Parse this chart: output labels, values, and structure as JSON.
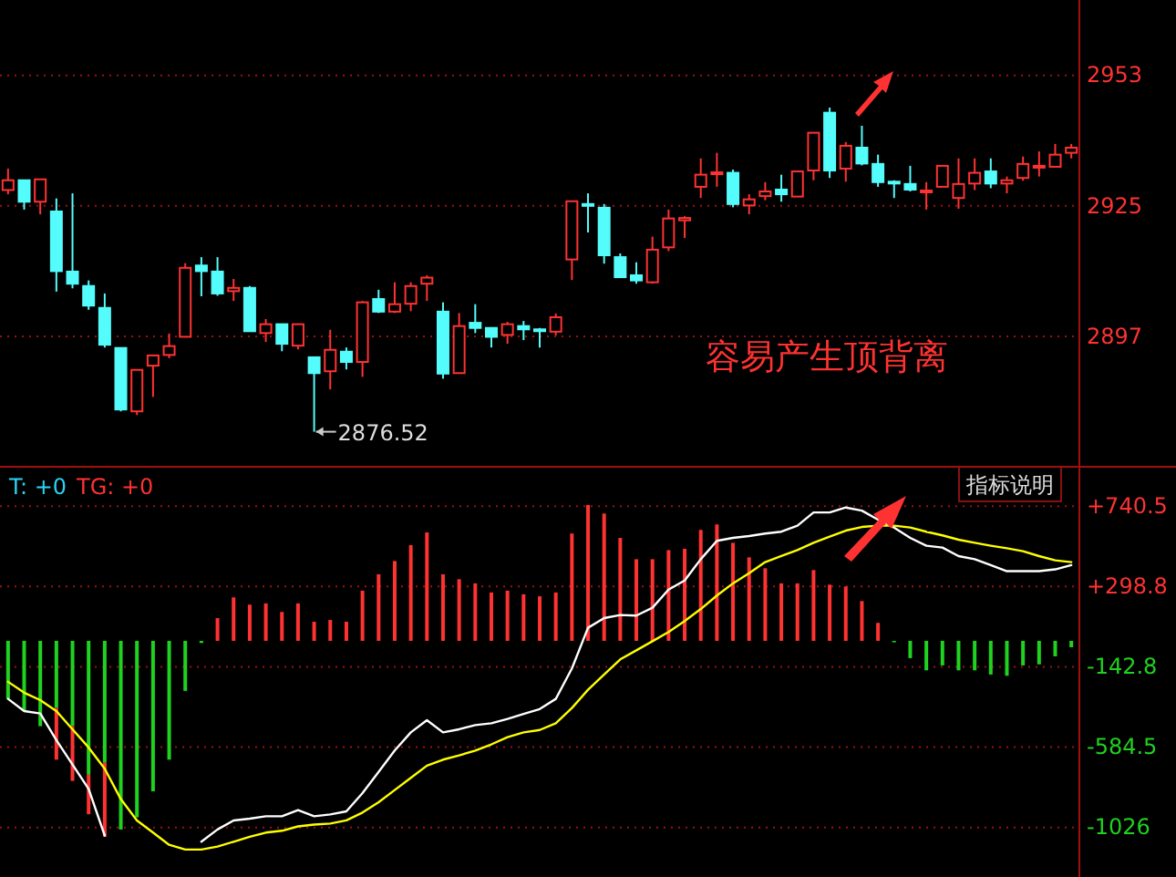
{
  "chart_data": [
    {
      "type": "candlestick",
      "categories": [
        null,
        null,
        null,
        null,
        null,
        null,
        null,
        null,
        null,
        null,
        null,
        null,
        null,
        null,
        null,
        null,
        null,
        null,
        null,
        null,
        null,
        null,
        null,
        null,
        null,
        null,
        null,
        null,
        null,
        null,
        null,
        null,
        null,
        null,
        null,
        null,
        null,
        null,
        null,
        null,
        null,
        null,
        null,
        null,
        null,
        null,
        null,
        null,
        null,
        null,
        null,
        null,
        null,
        null,
        null,
        null,
        null,
        null,
        null,
        null,
        null,
        null,
        null,
        null,
        null,
        null,
        null
      ],
      "ohlc": [
        [
          2928.4,
          2933.0,
          2927.5,
          2930.5
        ],
        [
          2930.5,
          2930.5,
          2924.2,
          2925.9
        ],
        [
          2925.9,
          2930.7,
          2923.2,
          2930.7
        ],
        [
          2923.8,
          2926.6,
          2906.6,
          2911.0
        ],
        [
          2910.9,
          2927.7,
          2907.3,
          2908.3
        ],
        [
          2907.8,
          2909.0,
          2902.7,
          2903.6
        ],
        [
          2903.1,
          2906.2,
          2894.6,
          2895.2
        ],
        [
          2894.5,
          2894.5,
          2880.9,
          2881.3
        ],
        [
          2880.9,
          2889.8,
          2880.1,
          2889.8
        ],
        [
          2890.7,
          2892.9,
          2884.0,
          2892.9
        ],
        [
          2893.0,
          2897.6,
          2892.3,
          2894.9
        ],
        [
          2896.9,
          2912.7,
          2896.9,
          2911.7
        ],
        [
          2912.2,
          2914.0,
          2905.6,
          2911.0
        ],
        [
          2910.9,
          2914.0,
          2905.7,
          2906.2
        ],
        [
          2906.7,
          2909.3,
          2904.6,
          2907.4
        ],
        [
          2907.4,
          2907.8,
          2898.1,
          2898.1
        ],
        [
          2897.7,
          2900.7,
          2895.8,
          2899.6
        ],
        [
          2899.6,
          2899.6,
          2893.8,
          2895.4
        ],
        [
          2895.0,
          2899.6,
          2894.2,
          2899.6
        ],
        [
          2892.5,
          2892.5,
          2876.52,
          2889.1
        ],
        [
          2889.5,
          2898.4,
          2885.6,
          2894.1
        ],
        [
          2893.7,
          2894.6,
          2889.9,
          2891.5
        ],
        [
          2891.5,
          2904.6,
          2888.3,
          2904.3
        ],
        [
          2905.0,
          2907.0,
          2902.0,
          2902.3
        ],
        [
          2902.3,
          2908.6,
          2902.0,
          2903.9
        ],
        [
          2904.0,
          2908.6,
          2902.4,
          2907.8
        ],
        [
          2908.3,
          2910.1,
          2904.6,
          2909.6
        ],
        [
          2902.3,
          2904.3,
          2887.9,
          2889.0
        ],
        [
          2889.1,
          2902.0,
          2889.1,
          2899.2
        ],
        [
          2899.9,
          2903.9,
          2897.7,
          2898.8
        ],
        [
          2898.8,
          2898.8,
          2894.6,
          2896.9
        ],
        [
          2897.3,
          2900.1,
          2895.4,
          2899.6
        ],
        [
          2899.2,
          2900.3,
          2896.2,
          2898.5
        ],
        [
          2898.5,
          2898.8,
          2894.6,
          2898.3
        ],
        [
          2898.0,
          2901.9,
          2897.2,
          2901.1
        ],
        [
          2913.5,
          2926.0,
          2909.1,
          2926.0
        ],
        [
          2925.4,
          2927.7,
          2919.3,
          2925.1
        ],
        [
          2924.6,
          2925.4,
          2912.6,
          2914.4
        ],
        [
          2914.0,
          2914.8,
          2909.5,
          2909.7
        ],
        [
          2910.1,
          2912.9,
          2908.3,
          2909.0
        ],
        [
          2908.6,
          2918.4,
          2908.3,
          2915.6
        ],
        [
          2916.1,
          2924.2,
          2915.3,
          2922.3
        ],
        [
          2921.9,
          2922.8,
          2918.1,
          2922.4
        ],
        [
          2929.1,
          2935.2,
          2926.7,
          2931.7
        ],
        [
          2931.9,
          2936.4,
          2929.1,
          2932.2
        ],
        [
          2932.1,
          2932.8,
          2924.7,
          2925.4
        ],
        [
          2925.1,
          2927.5,
          2923.2,
          2926.4
        ],
        [
          2927.1,
          2930.1,
          2926.2,
          2928.1
        ],
        [
          2928.5,
          2931.7,
          2925.9,
          2927.5
        ],
        [
          2927.0,
          2932.4,
          2927.0,
          2932.4
        ],
        [
          2932.6,
          2940.7,
          2930.5,
          2940.7
        ],
        [
          2945.0,
          2946.1,
          2931.0,
          2932.6
        ],
        [
          2933.0,
          2938.7,
          2930.2,
          2937.9
        ],
        [
          2937.5,
          2942.2,
          2933.7,
          2934.1
        ],
        [
          2934.0,
          2936.0,
          2929.1,
          2930.1
        ],
        [
          2930.2,
          2930.5,
          2926.7,
          2930.0
        ],
        [
          2929.7,
          2933.6,
          2928.1,
          2928.5
        ],
        [
          2928.0,
          2930.1,
          2924.2,
          2928.3
        ],
        [
          2929.1,
          2933.6,
          2929.1,
          2933.6
        ],
        [
          2926.7,
          2935.2,
          2924.4,
          2929.7
        ],
        [
          2929.8,
          2935.2,
          2928.4,
          2932.1
        ],
        [
          2932.4,
          2935.2,
          2928.8,
          2929.8
        ],
        [
          2929.8,
          2931.3,
          2927.7,
          2930.5
        ],
        [
          2931.0,
          2935.6,
          2930.4,
          2934.0
        ],
        [
          2933.4,
          2936.7,
          2931.3,
          2933.6
        ],
        [
          2933.4,
          2938.3,
          2933.4,
          2936.0
        ],
        [
          2936.4,
          2938.3,
          2935.2,
          2937.5
        ]
      ],
      "colors": [
        "#ff3232",
        "#54fcfc",
        "#ff3232",
        "#54fcfc",
        "#54fcfc",
        "#54fcfc",
        "#54fcfc",
        "#54fcfc",
        "#ff3232",
        "#ff3232",
        "#ff3232",
        "#ff3232",
        "#54fcfc",
        "#54fcfc",
        "#ff3232",
        "#54fcfc",
        "#ff3232",
        "#54fcfc",
        "#ff3232",
        "#54fcfc",
        "#ff3232",
        "#54fcfc",
        "#ff3232",
        "#54fcfc",
        "#ff3232",
        "#ff3232",
        "#ff3232",
        "#54fcfc",
        "#ff3232",
        "#54fcfc",
        "#54fcfc",
        "#ff3232",
        "#54fcfc",
        "#54fcfc",
        "#ff3232",
        "#ff3232",
        "#54fcfc",
        "#54fcfc",
        "#54fcfc",
        "#54fcfc",
        "#ff3232",
        "#ff3232",
        "#ff3232",
        "#ff3232",
        "#ff3232",
        "#54fcfc",
        "#ff3232",
        "#ff3232",
        "#54fcfc",
        "#ff3232",
        "#ff3232",
        "#54fcfc",
        "#ff3232",
        "#54fcfc",
        "#54fcfc",
        "#54fcfc",
        "#54fcfc",
        "#ff3232",
        "#ff3232",
        "#ff3232",
        "#ff3232",
        "#54fcfc",
        "#ff3232",
        "#ff3232",
        "#ff3232",
        "#ff3232",
        "#ff3232"
      ],
      "ylim": [
        2869,
        2969.2
      ],
      "yticks": [
        2953,
        2925,
        2897
      ],
      "grid": "y",
      "annotations": [
        "2876.52",
        "容易产生顶背离"
      ]
    },
    {
      "type": "bar",
      "stacked": true,
      "categories": [
        null,
        null,
        null,
        null,
        null,
        null,
        null,
        null,
        null,
        null,
        null,
        null,
        null,
        null,
        null,
        null,
        null,
        null,
        null,
        null,
        null,
        null,
        null,
        null,
        null,
        null,
        null,
        null,
        null,
        null,
        null,
        null,
        null,
        null,
        null,
        null,
        null,
        null,
        null,
        null,
        null,
        null,
        null,
        null,
        null,
        null,
        null,
        null,
        null,
        null,
        null,
        null,
        null,
        null,
        null,
        null,
        null,
        null,
        null,
        null,
        null,
        null,
        null,
        null,
        null,
        null,
        null
      ],
      "series": [
        {
          "type": "bar",
          "colors": [
            "#1fd21f",
            "#1fd21f",
            "#1fd21f",
            "#1fd21f",
            "#1fd21f",
            "#1fd21f",
            "#1fd21f",
            "#1fd21f",
            "#1fd21f",
            "#1fd21f",
            "#1fd21f",
            "#1fd21f",
            "#1fd21f",
            "#ff3232",
            "#ff3232",
            "#ff3232",
            "#ff3232",
            "#ff3232",
            "#ff3232",
            "#ff3232",
            "#ff3232",
            "#ff3232",
            "#ff3232",
            "#ff3232",
            "#ff3232",
            "#ff3232",
            "#ff3232",
            "#ff3232",
            "#ff3232",
            "#ff3232",
            "#ff3232",
            "#ff3232",
            "#ff3232",
            "#ff3232",
            "#ff3232",
            "#ff3232",
            "#ff3232",
            "#ff3232",
            "#ff3232",
            "#ff3232",
            "#ff3232",
            "#ff3232",
            "#ff3232",
            "#ff3232",
            "#ff3232",
            "#ff3232",
            "#ff3232",
            "#ff3232",
            "#ff3232",
            "#ff3232",
            "#ff3232",
            "#ff3232",
            "#ff3232",
            "#ff3232",
            "#ff3232",
            "#1fd21f",
            "#1fd21f",
            "#1fd21f",
            "#1fd21f",
            "#1fd21f",
            "#1fd21f",
            "#1fd21f",
            "#1fd21f",
            "#1fd21f",
            "#1fd21f",
            "#1fd21f",
            "#1fd21f"
          ],
          "values": [
            -319,
            -386,
            -469,
            -369,
            -469,
            -736,
            -670,
            -1037,
            -970,
            -827,
            -653,
            -275,
            -12,
            125,
            239,
            199,
            206,
            159,
            206,
            105,
            115,
            105,
            276,
            366,
            439,
            526,
            596,
            366,
            339,
            316,
            266,
            276,
            256,
            245,
            266,
            590,
            747,
            700,
            566,
            449,
            449,
            499,
            506,
            610,
            640,
            539,
            459,
            399,
            316,
            316,
            389,
            309,
            299,
            219,
            99,
            -8,
            -95,
            -162,
            -135,
            -162,
            -162,
            -185,
            -192,
            -135,
            -129,
            -85,
            -35
          ]
        },
        {
          "type": "bar",
          "color": "#ff3232",
          "values": [
            null,
            null,
            null,
            -284,
            -301,
            -217,
            -407,
            null,
            null,
            null,
            null,
            null,
            null,
            null,
            null,
            null,
            null,
            null,
            null,
            null,
            null,
            null,
            null,
            null,
            null,
            null,
            null,
            null,
            null,
            null,
            null,
            null,
            null,
            null,
            null,
            null,
            null,
            null,
            null,
            null,
            null,
            null,
            null,
            null,
            null,
            null,
            null,
            null,
            null,
            null,
            null,
            null,
            null,
            null,
            null,
            null,
            null,
            null,
            null,
            null,
            null,
            null,
            null,
            null,
            null,
            null,
            null
          ]
        },
        {
          "type": "line",
          "color": "#ffffff",
          "values": [
            -319,
            -386,
            -399,
            -546,
            -680,
            -814,
            -1070,
            null,
            null,
            null,
            null,
            null,
            -1104,
            -1037,
            -987,
            -977,
            -964,
            -964,
            -930,
            -964,
            -954,
            -937,
            -837,
            -720,
            -603,
            -503,
            -436,
            -503,
            -486,
            -463,
            -453,
            -429,
            -402,
            -375,
            -319,
            -152,
            72,
            125,
            142,
            139,
            182,
            282,
            332,
            449,
            550,
            566,
            576,
            590,
            600,
            633,
            706,
            706,
            733,
            716,
            666,
            623,
            566,
            523,
            513,
            466,
            449,
            416,
            383,
            383,
            383,
            393,
            416
          ]
        },
        {
          "type": "line",
          "color": "#ffff00",
          "values": [
            -225,
            -285,
            -326,
            -386,
            -486,
            -586,
            -703,
            -870,
            -987,
            -1054,
            -1121,
            -1147,
            -1147,
            -1131,
            -1104,
            -1077,
            -1054,
            -1044,
            -1020,
            -1010,
            -1004,
            -987,
            -944,
            -887,
            -820,
            -753,
            -686,
            -653,
            -630,
            -603,
            -569,
            -529,
            -503,
            -490,
            -453,
            -369,
            -269,
            -185,
            -102,
            -52,
            -2,
            49,
            109,
            175,
            249,
            316,
            372,
            433,
            466,
            499,
            539,
            573,
            606,
            626,
            633,
            633,
            623,
            600,
            580,
            556,
            539,
            523,
            509,
            493,
            466,
            443,
            433
          ]
        }
      ],
      "ylim": [
        -1298,
        957
      ],
      "yticks": [
        {
          "value": 740.5,
          "label": "+740.5"
        },
        {
          "value": 298.8,
          "label": "+298.8"
        },
        -142.8,
        -584.5,
        -1026
      ],
      "grid": "y",
      "annotations": [
        "T: +0",
        "TG: +0",
        "指标说明"
      ]
    }
  ]
}
